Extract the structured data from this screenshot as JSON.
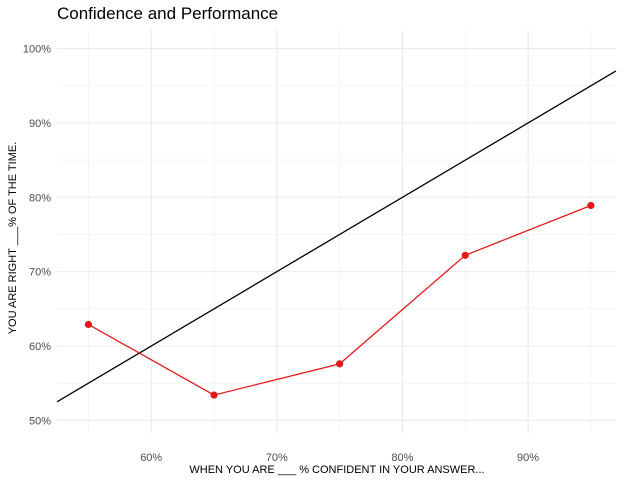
{
  "chart_data": {
    "type": "line",
    "title": "Confidence and Performance",
    "xlabel": "WHEN YOU ARE ___ % CONFIDENT IN YOUR ANSWER...",
    "ylabel": "YOU ARE RIGHT ___% OF THE TIME.",
    "xlim": [
      0.525,
      0.97
    ],
    "ylim": [
      0.483,
      1.025
    ],
    "x_ticks": [
      0.6,
      0.7,
      0.8,
      0.9
    ],
    "x_tick_labels": [
      "60%",
      "70%",
      "80%",
      "90%"
    ],
    "y_ticks": [
      0.5,
      0.6,
      0.7,
      0.8,
      0.9,
      1.0
    ],
    "y_tick_labels": [
      "50%",
      "60%",
      "70%",
      "80%",
      "90%",
      "100%"
    ],
    "grid": true,
    "series": [
      {
        "x": [
          0.55,
          0.65,
          0.75,
          0.85,
          0.95
        ],
        "y": [
          0.629,
          0.534,
          0.576,
          0.722,
          0.789
        ],
        "color": "#e31a1c",
        "markers": true
      }
    ],
    "reference_line": {
      "x": [
        0.525,
        0.97
      ],
      "y": [
        0.525,
        0.97
      ],
      "color": "#000000"
    }
  }
}
